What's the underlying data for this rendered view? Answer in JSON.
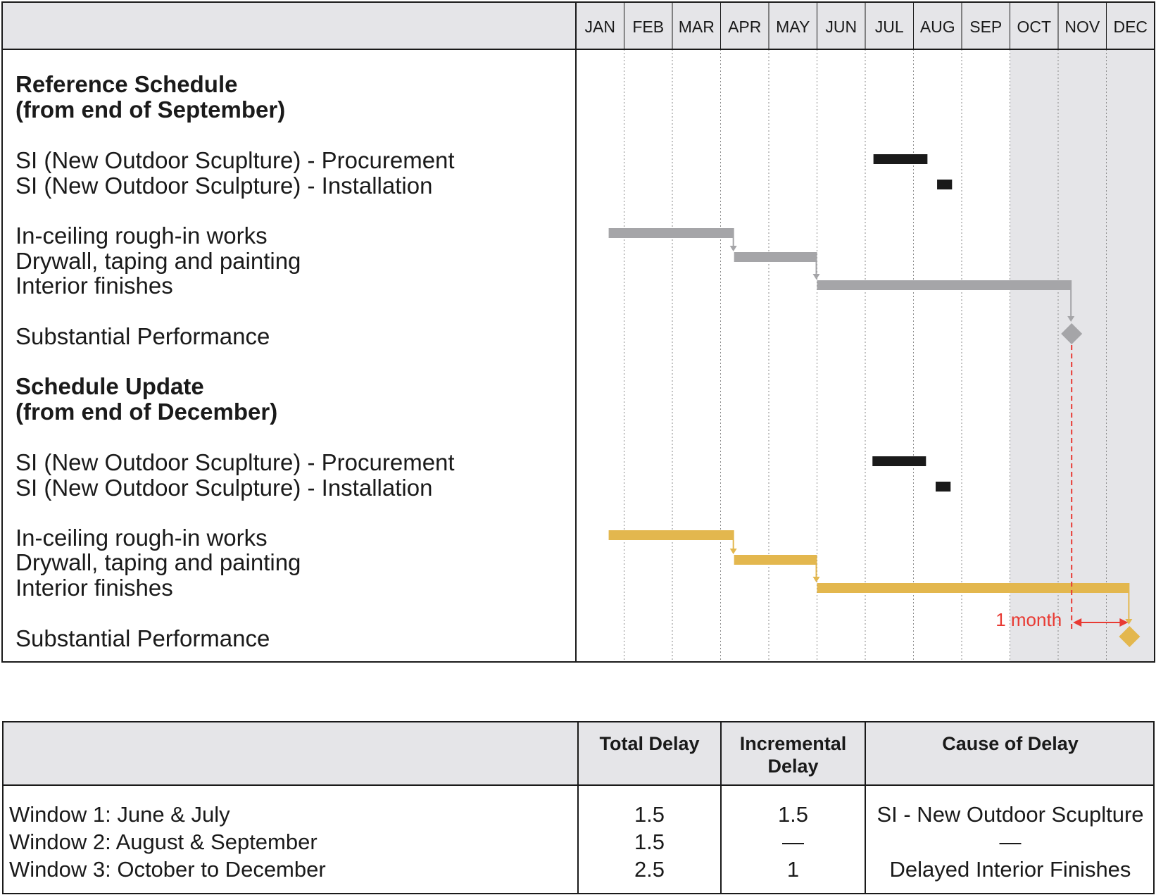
{
  "months": [
    "JAN",
    "FEB",
    "MAR",
    "APR",
    "MAY",
    "JUN",
    "JUL",
    "AUG",
    "SEP",
    "OCT",
    "NOV",
    "DEC"
  ],
  "colors": {
    "reference": "#a5a5a8",
    "update": "#e3b74e",
    "si": "#1a1a1a",
    "delay": "#e83a33",
    "shade": "#e5e5e8"
  },
  "reference": {
    "heading": "Reference Schedule",
    "subheading": "(from end of September)",
    "rows": [
      {
        "label": "SI (New Outdoor Scuplture) - Procurement",
        "start": 6.17,
        "end": 7.29,
        "kind": "si"
      },
      {
        "label": "SI (New Outdoor Sculpture) - Installation",
        "start": 7.49,
        "end": 7.8,
        "kind": "si"
      },
      {
        "label": "In-ceiling rough-in works",
        "start": 0.68,
        "end": 3.28,
        "kind": "reference"
      },
      {
        "label": "Drywall, taping and painting",
        "start": 3.28,
        "end": 5.0,
        "kind": "reference"
      },
      {
        "label": "Interior finishes",
        "start": 5.0,
        "end": 10.28,
        "kind": "reference"
      },
      {
        "label": "Substantial Performance",
        "milestone": 10.28,
        "kind": "reference"
      }
    ]
  },
  "update": {
    "heading": "Schedule Update",
    "subheading": "(from end of December)",
    "rows": [
      {
        "label": "SI (New Outdoor Scuplture) - Procurement",
        "start": 6.15,
        "end": 7.26,
        "kind": "si"
      },
      {
        "label": "SI (New Outdoor Sculpture) - Installation",
        "start": 7.46,
        "end": 7.77,
        "kind": "si"
      },
      {
        "label": "In-ceiling rough-in works",
        "start": 0.68,
        "end": 3.28,
        "kind": "update"
      },
      {
        "label": "Drywall, taping and painting",
        "start": 3.28,
        "end": 5.0,
        "kind": "update"
      },
      {
        "label": "Interior finishes",
        "start": 5.0,
        "end": 11.48,
        "kind": "update"
      },
      {
        "label": "Substantial Performance",
        "milestone": 11.48,
        "kind": "update"
      }
    ]
  },
  "shaded_window": {
    "start_month": 9,
    "end_month": 12
  },
  "delay_annotation": {
    "text": "1 month",
    "from_month": 10.28,
    "to_month": 11.48
  },
  "table": {
    "headers": [
      "Total Delay",
      "Incremental\nDelay",
      "Cause of Delay"
    ],
    "rows": [
      {
        "window": "Window 1: June & July",
        "total": "1.5",
        "incremental": "1.5",
        "cause": "SI - New Outdoor Scuplture"
      },
      {
        "window": "Window 2: August & September",
        "total": "1.5",
        "incremental": "—",
        "cause": "—"
      },
      {
        "window": "Window 3: October to December",
        "total": "2.5",
        "incremental": "1",
        "cause": "Delayed Interior Finishes"
      }
    ]
  }
}
